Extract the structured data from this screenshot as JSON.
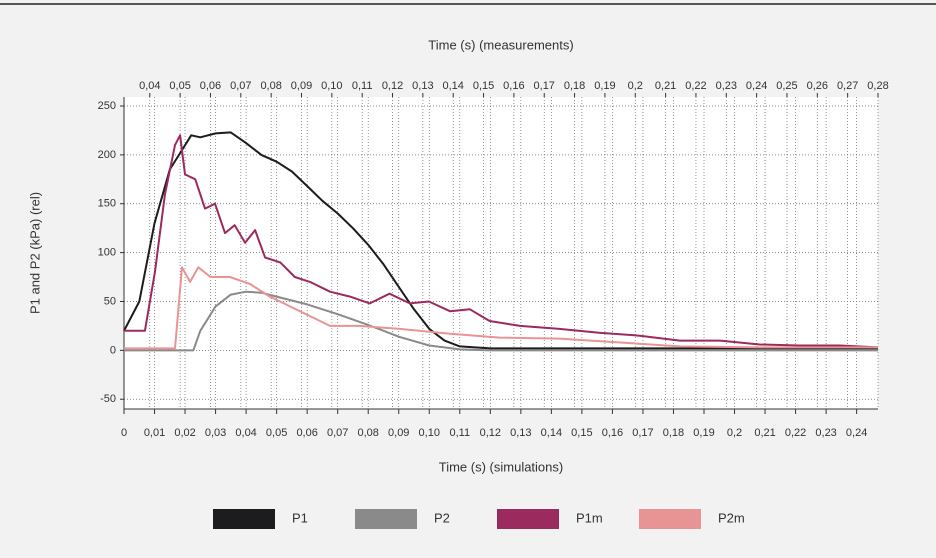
{
  "chart_data": {
    "type": "line",
    "x2_label": "Time (s) (measurements)",
    "x_label": "Time (s) (simulations)",
    "y_label": "P1 and P2 (kPa) (rel)",
    "xlim": [
      0,
      0.247
    ],
    "x2lim": [
      0.0315,
      0.28
    ],
    "ylim": [
      -60,
      250
    ],
    "grid": true,
    "legend": "bottom",
    "yticks": [
      -50,
      0,
      50,
      100,
      150,
      200,
      250
    ],
    "xticks": [
      0,
      {
        "value": 0.01,
        "label": "0,01"
      },
      {
        "value": 0.02,
        "label": "0,02"
      },
      {
        "value": 0.03,
        "label": "0,03"
      },
      {
        "value": 0.04,
        "label": "0,04"
      },
      {
        "value": 0.05,
        "label": "0,05"
      },
      {
        "value": 0.06,
        "label": "0,06"
      },
      {
        "value": 0.07,
        "label": "0,07"
      },
      {
        "value": 0.08,
        "label": "0,08"
      },
      {
        "value": 0.09,
        "label": "0,09"
      },
      {
        "value": 0.1,
        "label": "0,10"
      },
      {
        "value": 0.11,
        "label": "0,11"
      },
      {
        "value": 0.12,
        "label": "0,12"
      },
      {
        "value": 0.13,
        "label": "0,13"
      },
      {
        "value": 0.14,
        "label": "0,14"
      },
      {
        "value": 0.15,
        "label": "0,15"
      },
      {
        "value": 0.16,
        "label": "0,16"
      },
      {
        "value": 0.17,
        "label": "0,17"
      },
      {
        "value": 0.18,
        "label": "0,18"
      },
      {
        "value": 0.19,
        "label": "0,19"
      },
      {
        "value": 0.2,
        "label": "0,2"
      },
      {
        "value": 0.21,
        "label": "0,21"
      },
      {
        "value": 0.22,
        "label": "0,22"
      },
      {
        "value": 0.23,
        "label": "0,23"
      },
      {
        "value": 0.24,
        "label": "0,24"
      }
    ],
    "x2ticks": [
      {
        "value": 0.04,
        "label": "0,04"
      },
      {
        "value": 0.05,
        "label": "0,05"
      },
      {
        "value": 0.06,
        "label": "0,06"
      },
      {
        "value": 0.07,
        "label": "0,07"
      },
      {
        "value": 0.08,
        "label": "0,08"
      },
      {
        "value": 0.09,
        "label": "0,09"
      },
      {
        "value": 0.1,
        "label": "0,10"
      },
      {
        "value": 0.11,
        "label": "0,11"
      },
      {
        "value": 0.12,
        "label": "0,12"
      },
      {
        "value": 0.13,
        "label": "0,13"
      },
      {
        "value": 0.14,
        "label": "0,14"
      },
      {
        "value": 0.15,
        "label": "0,15"
      },
      {
        "value": 0.16,
        "label": "0,16"
      },
      {
        "value": 0.17,
        "label": "0,17"
      },
      {
        "value": 0.18,
        "label": "0,18"
      },
      {
        "value": 0.19,
        "label": "0,19"
      },
      {
        "value": 0.2,
        "label": "0,2"
      },
      {
        "value": 0.21,
        "label": "0,21"
      },
      {
        "value": 0.22,
        "label": "0,22"
      },
      {
        "value": 0.23,
        "label": "0,23"
      },
      {
        "value": 0.24,
        "label": "0,24"
      },
      {
        "value": 0.25,
        "label": "0,25"
      },
      {
        "value": 0.26,
        "label": "0,26"
      },
      {
        "value": 0.27,
        "label": "0,27"
      },
      {
        "value": 0.28,
        "label": "0,28"
      }
    ],
    "series": [
      {
        "name": "P1",
        "color": "#1c1c1e",
        "axis": "x",
        "x": [
          0,
          0.005,
          0.01,
          0.015,
          0.02,
          0.022,
          0.025,
          0.03,
          0.035,
          0.04,
          0.045,
          0.05,
          0.055,
          0.06,
          0.065,
          0.07,
          0.075,
          0.08,
          0.085,
          0.09,
          0.095,
          0.1,
          0.105,
          0.11,
          0.12,
          0.247
        ],
        "values": [
          20,
          50,
          130,
          185,
          210,
          220,
          218,
          222,
          223,
          212,
          200,
          193,
          183,
          168,
          153,
          140,
          125,
          108,
          88,
          65,
          42,
          22,
          10,
          4,
          2,
          2
        ]
      },
      {
        "name": "P2",
        "color": "#8a8a8a",
        "axis": "x",
        "x": [
          0,
          0.0227,
          0.025,
          0.03,
          0.035,
          0.04,
          0.045,
          0.05,
          0.06,
          0.07,
          0.08,
          0.09,
          0.1,
          0.11,
          0.12,
          0.247
        ],
        "values": [
          0,
          0,
          20,
          45,
          57,
          60,
          59,
          55,
          47,
          37,
          26,
          14,
          5,
          1,
          0,
          0
        ]
      },
      {
        "name": "P1m",
        "color": "#9b2a5e",
        "axis": "x2",
        "x": [
          0.0315,
          0.0384,
          0.0417,
          0.045,
          0.0483,
          0.05,
          0.0516,
          0.055,
          0.0582,
          0.0615,
          0.0648,
          0.068,
          0.0714,
          0.0747,
          0.078,
          0.083,
          0.0878,
          0.0928,
          0.0994,
          0.106,
          0.1125,
          0.119,
          0.1257,
          0.132,
          0.139,
          0.1455,
          0.152,
          0.162,
          0.175,
          0.188,
          0.2015,
          0.2147,
          0.228,
          0.241,
          0.254,
          0.2674,
          0.28
        ],
        "values": [
          20,
          20,
          80,
          160,
          210,
          220,
          180,
          175,
          145,
          150,
          120,
          128,
          110,
          123,
          95,
          90,
          75,
          70,
          60,
          55,
          48,
          58,
          48,
          50,
          40,
          42,
          30,
          25,
          22,
          18,
          15,
          10,
          10,
          6,
          5,
          5,
          3
        ]
      },
      {
        "name": "P2m",
        "color": "#e89494",
        "axis": "x2",
        "x": [
          0.0315,
          0.0483,
          0.0506,
          0.0533,
          0.056,
          0.06,
          0.0664,
          0.073,
          0.0796,
          0.0862,
          0.0928,
          0.0994,
          0.109,
          0.1224,
          0.139,
          0.1554,
          0.175,
          0.195,
          0.2147,
          0.241,
          0.28
        ],
        "values": [
          2,
          2,
          85,
          70,
          85,
          75,
          75,
          68,
          55,
          45,
          35,
          25,
          25,
          22,
          17,
          13,
          12,
          8,
          4,
          3,
          3
        ]
      }
    ]
  }
}
